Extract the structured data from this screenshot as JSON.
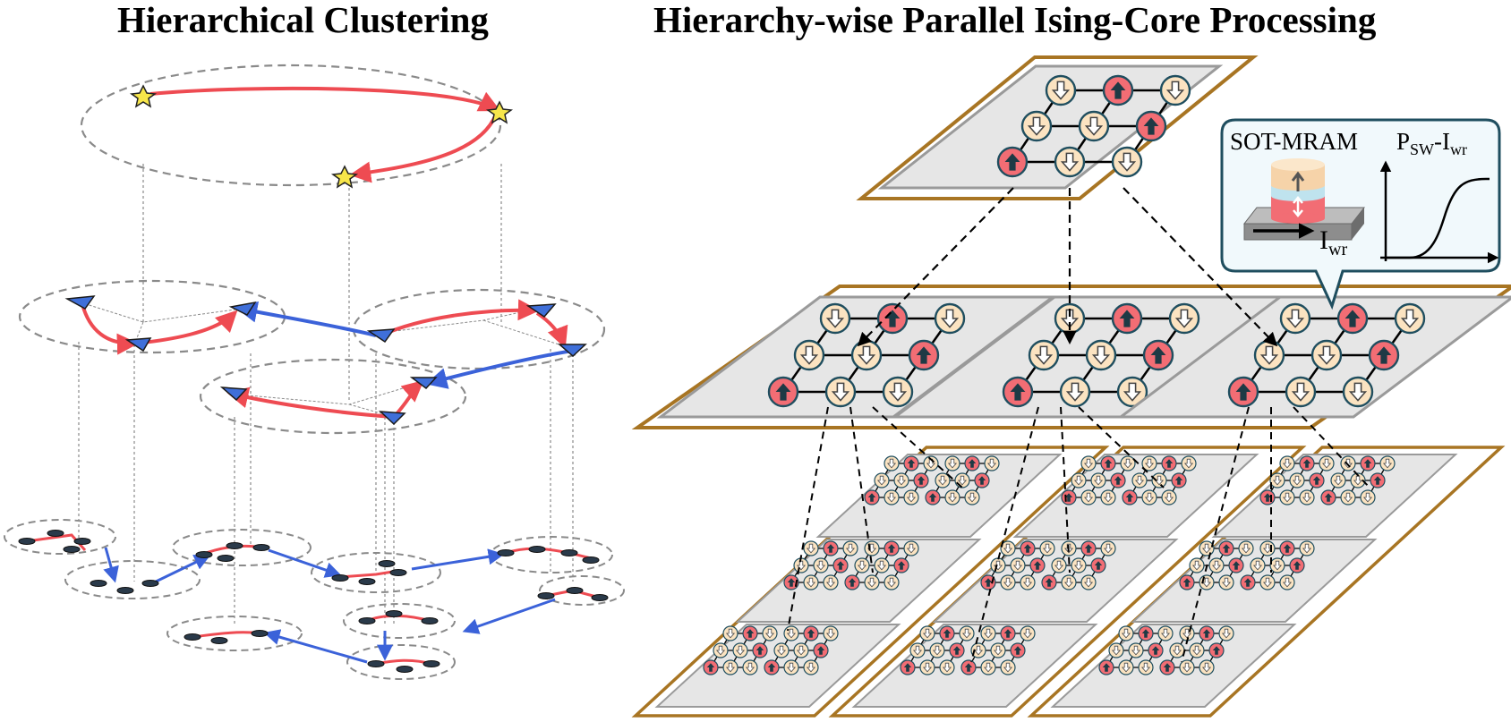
{
  "titles": {
    "left": "Hierarchical Clustering",
    "right": "Hierarchy-wise Parallel Ising-Core Processing"
  },
  "callout": {
    "device_label": "SOT-MRAM",
    "curve_label_main": "P",
    "curve_label_sub": "SW",
    "curve_label_sep": "-I",
    "curve_label_sub2": "wr",
    "current_label_main": "I",
    "current_label_sub": "wr"
  },
  "colors": {
    "spin_up": "#f26d74",
    "spin_down": "#fbe3c1",
    "spin_stroke": "#1f4e5f",
    "core_frame": "#a87523",
    "core_fill": "#e6e6e6",
    "red_edge": "#ee4b52",
    "blue_edge": "#3b62d9",
    "dash_gray": "#8a8a8a",
    "callout_border": "#1f4e5f",
    "callout_fill": "#f1f9fc"
  },
  "icons": {
    "spin_up": "up-arrow-icon",
    "spin_down": "down-arrow-icon",
    "node_top": "star-icon",
    "node_mid": "triangle-icon",
    "node_low": "ellipse-icon"
  },
  "core_patterns": {
    "top": [
      [
        "d",
        "u",
        "d"
      ],
      [
        "d",
        "d",
        "u"
      ],
      [
        "u",
        "d",
        "d"
      ]
    ],
    "mid_0": [
      [
        "d",
        "u",
        "d"
      ],
      [
        "d",
        "d",
        "u"
      ],
      [
        "u",
        "d",
        "d"
      ]
    ],
    "mid_1": [
      [
        "d",
        "u",
        "d"
      ],
      [
        "d",
        "d",
        "u"
      ],
      [
        "u",
        "d",
        "d"
      ]
    ],
    "mid_2": [
      [
        "d",
        "u",
        "d"
      ],
      [
        "d",
        "d",
        "u"
      ],
      [
        "u",
        "d",
        "d"
      ]
    ]
  }
}
